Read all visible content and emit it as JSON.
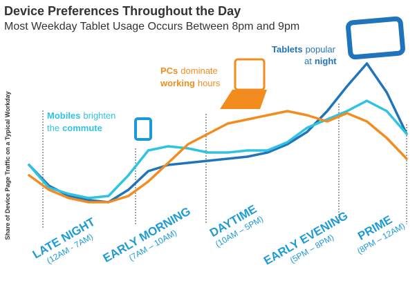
{
  "chart_data": {
    "type": "line",
    "title": "Device Preferences Throughout the Day",
    "subtitle": "Most Weekday Tablet Usage Occurs Between 8pm and 9pm",
    "y_label": "Share of Device Page Traffic on a Typical Workday",
    "categories": [
      null,
      null,
      null,
      null,
      null,
      null,
      null,
      null,
      null,
      null,
      null,
      null,
      null,
      null,
      null,
      null,
      null,
      null,
      null,
      null
    ],
    "ylim": [
      0,
      100
    ],
    "series": [
      {
        "name": "Tablets",
        "color": "#1f74bb",
        "values": [
          37,
          27,
          22,
          20,
          19,
          25,
          34,
          37,
          38,
          39,
          40,
          41,
          43,
          47,
          53,
          63,
          75,
          86,
          72,
          52
        ]
      },
      {
        "name": "Mobiles",
        "color": "#2fc3e3",
        "values": [
          37,
          26,
          23,
          21,
          22,
          32,
          44,
          46,
          45,
          43,
          43,
          44,
          44,
          48,
          55,
          59,
          63,
          68,
          63,
          52
        ]
      },
      {
        "name": "PCs",
        "color": "#f28c1e",
        "values": [
          32,
          25,
          21,
          19,
          19,
          22,
          29,
          38,
          47,
          52,
          57,
          59,
          61,
          63,
          61,
          58,
          62,
          58,
          50,
          40
        ]
      }
    ],
    "periods": [
      {
        "name": "LATE NIGHT",
        "range": "(12AM - 7AM)"
      },
      {
        "name": "EARLY MORNING",
        "range": "(7AM – 10AM)"
      },
      {
        "name": "DAYTIME",
        "range": "(10AM – 5PM)"
      },
      {
        "name": "EARLY EVENING",
        "range": "(5PM – 8PM)"
      },
      {
        "name": "PRIME",
        "range": "(8PM – 12AM)"
      }
    ],
    "annotations": [
      {
        "line1": [
          "Mobiles",
          "brighten"
        ],
        "line2": [
          "the",
          "commute"
        ]
      },
      {
        "line1": [
          "PCs",
          "dominate"
        ],
        "line2": [
          "working",
          "hours"
        ]
      },
      {
        "line1": [
          "Tablets",
          "popular"
        ],
        "line2": [
          "at",
          "night"
        ]
      }
    ]
  }
}
